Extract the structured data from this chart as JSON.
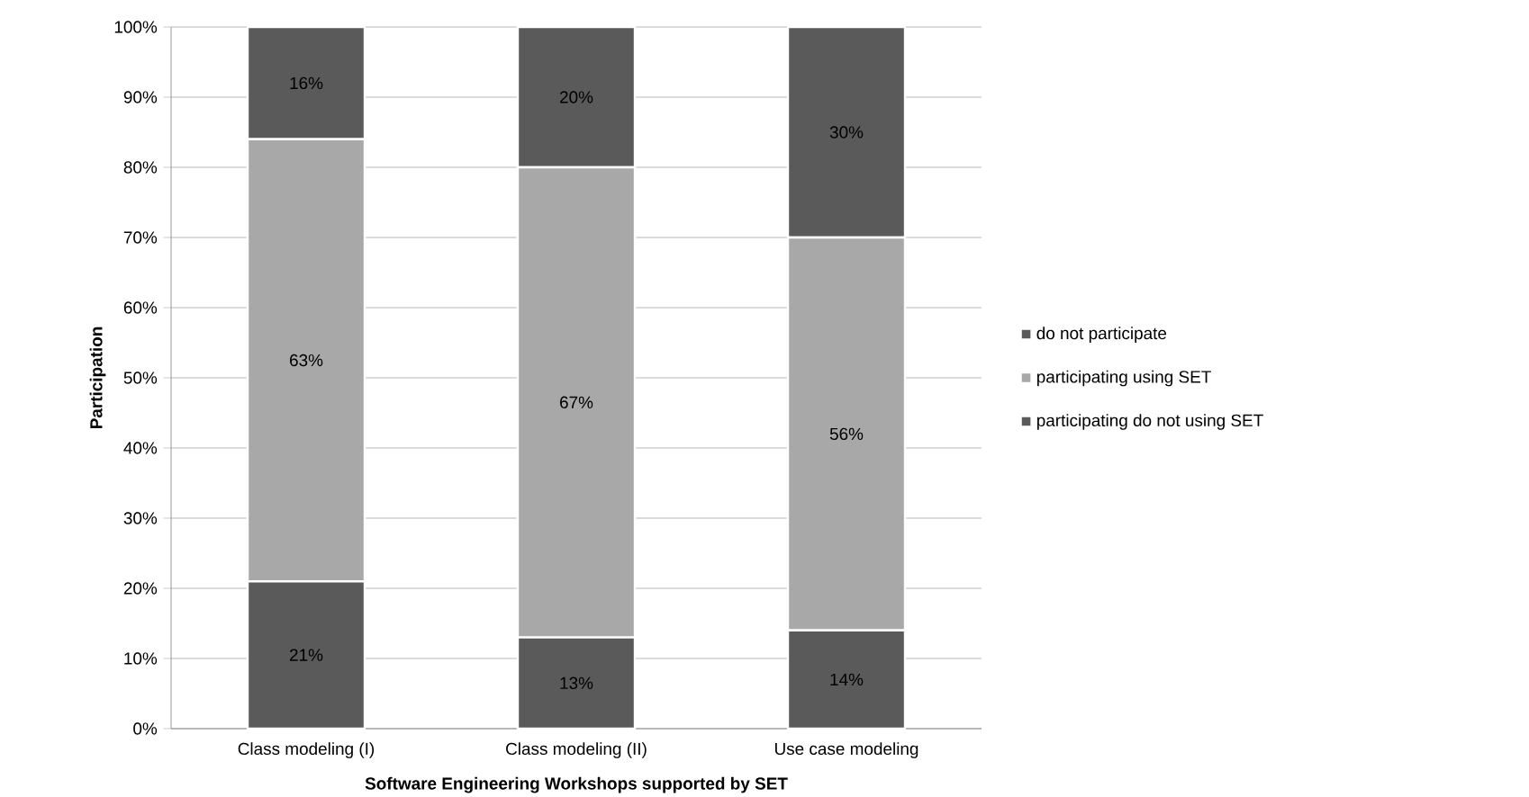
{
  "chart_data": {
    "type": "bar",
    "stacked": true,
    "xlabel": "Software Engineering  Workshops supported by SET",
    "ylabel": "Participation",
    "categories": [
      "Class modeling (I)",
      "Class modeling (II)",
      "Use case modeling"
    ],
    "series": [
      {
        "name": "participating do  not using SET",
        "color": "#5a5a5a",
        "values": [
          21,
          13,
          14
        ],
        "value_labels": [
          "21%",
          "13%",
          "14%"
        ]
      },
      {
        "name": "participating using SET",
        "color": "#a8a8a8",
        "values": [
          63,
          67,
          56
        ],
        "value_labels": [
          "63%",
          "67%",
          "56%"
        ]
      },
      {
        "name": "do not participate",
        "color": "#5a5a5a",
        "values": [
          16,
          20,
          30
        ],
        "value_labels": [
          "16%",
          "20%",
          "30%"
        ]
      }
    ],
    "ylim": [
      0,
      100
    ],
    "yticks": [
      {
        "value": 0,
        "label": "0%"
      },
      {
        "value": 10,
        "label": "10%"
      },
      {
        "value": 20,
        "label": "20%"
      },
      {
        "value": 30,
        "label": "30%"
      },
      {
        "value": 40,
        "label": "40%"
      },
      {
        "value": 50,
        "label": "50%"
      },
      {
        "value": 60,
        "label": "60%"
      },
      {
        "value": 70,
        "label": "70%"
      },
      {
        "value": 80,
        "label": "80%"
      },
      {
        "value": 90,
        "label": "90%"
      },
      {
        "value": 100,
        "label": "100%"
      }
    ],
    "grid": "y",
    "legend": "right"
  }
}
